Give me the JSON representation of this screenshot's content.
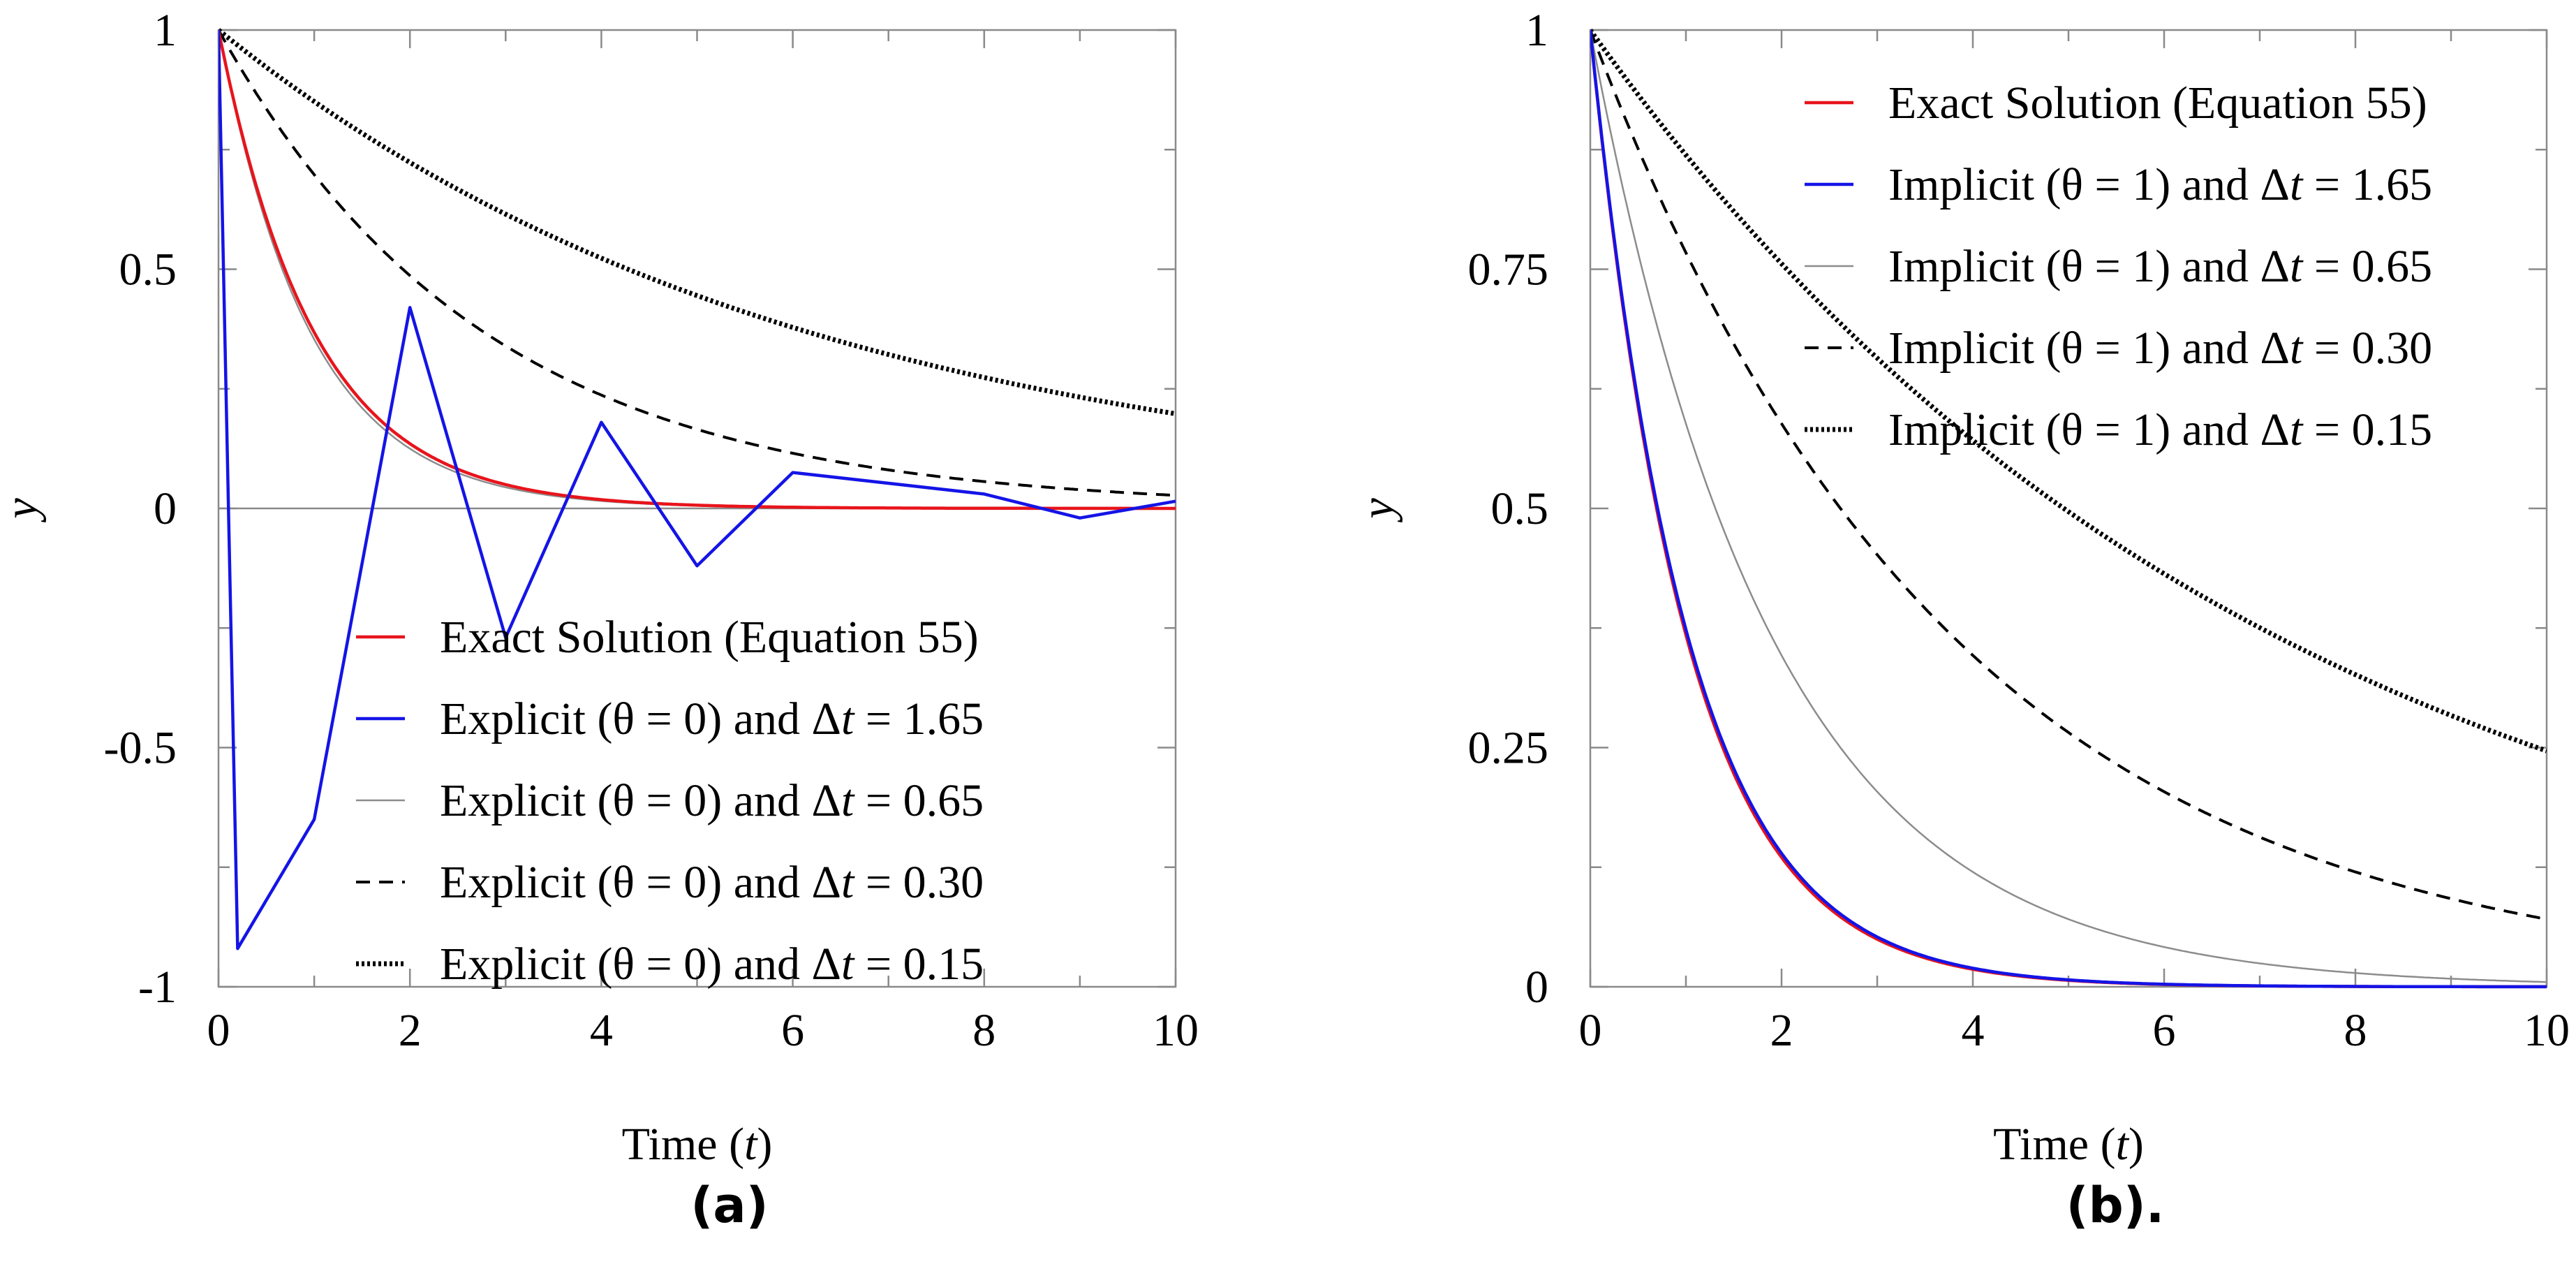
{
  "chart_data": [
    {
      "type": "line",
      "panel_label": "(a)",
      "xlabel_parts": [
        "Time (",
        "t",
        ")"
      ],
      "ylabel": "y",
      "xlim": [
        0,
        10
      ],
      "ylim": [
        -1,
        1
      ],
      "xticks": [
        0,
        2,
        4,
        6,
        8,
        10
      ],
      "xtick_labels": [
        "0",
        "2",
        "4",
        "6",
        "8",
        "10"
      ],
      "yticks": [
        -1,
        -0.5,
        0,
        0.5,
        1
      ],
      "ytick_labels": [
        "-1",
        "-0.5",
        "0",
        "0.5",
        "1"
      ],
      "legend_position": "bottom-right",
      "series": [
        {
          "name": "Exact Solution (Equation 55)",
          "legend_parts": [
            "Exact Solution (Equation 55)"
          ],
          "color": "#e8141b",
          "style": "solid",
          "kind": "function",
          "rate": 1.0
        },
        {
          "name": "Explicit (θ = 0) and Δt = 1.65",
          "legend_parts": [
            "Explicit (θ = 0) and Δ",
            "t",
            " = 1.65"
          ],
          "color": "#1414e6",
          "style": "solid",
          "kind": "points",
          "x": [
            0,
            0.2,
            1,
            2,
            3,
            4,
            5,
            6,
            8,
            9,
            10
          ],
          "y": [
            1,
            -0.92,
            -0.65,
            0.42,
            -0.27,
            0.18,
            -0.12,
            0.075,
            0.03,
            -0.02,
            0.015
          ]
        },
        {
          "name": "Explicit (θ = 0) and Δt = 0.65",
          "legend_parts": [
            "Explicit (θ = 0) and Δ",
            "t",
            " = 0.65"
          ],
          "color": "#8c8c8c",
          "style": "thin",
          "kind": "function",
          "rate": 1.04
        },
        {
          "name": "Explicit (θ = 0) and Δt = 0.30",
          "legend_parts": [
            "Explicit (θ = 0) and Δ",
            "t",
            " = 0.30"
          ],
          "color": "#000000",
          "style": "dashed",
          "kind": "function",
          "rate": 0.36
        },
        {
          "name": "Explicit (θ = 0) and Δt = 0.15",
          "legend_parts": [
            "Explicit (θ = 0) and Δ",
            "t",
            " = 0.15"
          ],
          "color": "#000000",
          "style": "dotted",
          "kind": "function",
          "rate": 0.162
        }
      ]
    },
    {
      "type": "line",
      "panel_label": "(b).",
      "xlabel_parts": [
        "Time (",
        "t",
        ")"
      ],
      "ylabel": "y",
      "xlim": [
        0,
        10
      ],
      "ylim": [
        0,
        1
      ],
      "xticks": [
        0,
        2,
        4,
        6,
        8,
        10
      ],
      "xtick_labels": [
        "0",
        "2",
        "4",
        "6",
        "8",
        "10"
      ],
      "yticks": [
        0,
        0.25,
        0.5,
        0.75,
        1
      ],
      "ytick_labels": [
        "0",
        "0.25",
        "0.5",
        "0.75",
        "1"
      ],
      "legend_position": "top-right",
      "series": [
        {
          "name": "Exact Solution (Equation 55)",
          "legend_parts": [
            "Exact Solution (Equation 55)"
          ],
          "color": "#e8141b",
          "style": "solid",
          "kind": "function",
          "rate": 1.0
        },
        {
          "name": "Implicit (θ = 1) and Δt = 1.65",
          "legend_parts": [
            "Implicit (θ = 1) and Δ",
            "t",
            " = 1.65"
          ],
          "color": "#1414e6",
          "style": "solid",
          "kind": "function",
          "rate": 0.985
        },
        {
          "name": "Implicit (θ = 1) and Δt = 0.65",
          "legend_parts": [
            "Implicit (θ = 1) and Δ",
            "t",
            " = 0.65"
          ],
          "color": "#8c8c8c",
          "style": "thin",
          "kind": "function",
          "rate": 0.53
        },
        {
          "name": "Implicit (θ = 1) and Δt = 0.30",
          "legend_parts": [
            "Implicit (θ = 1) and Δ",
            "t",
            " = 0.30"
          ],
          "color": "#000000",
          "style": "dashed",
          "kind": "function",
          "rate": 0.265
        },
        {
          "name": "Implicit (θ = 1) and Δt = 0.15",
          "legend_parts": [
            "Implicit (θ = 1) and Δ",
            "t",
            " = 0.15"
          ],
          "color": "#000000",
          "style": "dotted",
          "kind": "function",
          "rate": 0.14
        }
      ]
    }
  ]
}
